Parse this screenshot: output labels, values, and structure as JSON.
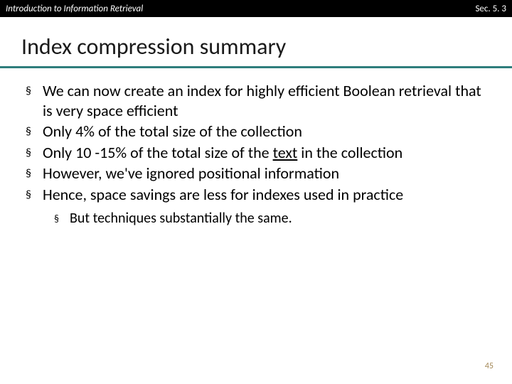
{
  "header": {
    "left": "Introduction to Information Retrieval",
    "right": "Sec. 5. 3"
  },
  "title": "Index compression summary",
  "bullets": [
    {
      "text": "We can now create an index for highly efficient Boolean retrieval that is very space efficient"
    },
    {
      "text": "Only 4% of the total size of the collection"
    },
    {
      "text_pre": "Only 10 -15% of the total size of the ",
      "text_underline": "text",
      "text_post": " in the collection"
    },
    {
      "text": "However, we've ignored positional information"
    },
    {
      "text": "Hence, space savings are less for indexes used in practice"
    }
  ],
  "sub_bullets": [
    {
      "text": "But techniques substantially the same."
    }
  ],
  "bullet_marker": "§",
  "slide_number": "45",
  "colors": {
    "header_bg": "#000000",
    "header_text": "#ffffff",
    "title_underline": "#2f7e7c",
    "body_text": "#000000",
    "slide_number": "#a68b5b"
  }
}
